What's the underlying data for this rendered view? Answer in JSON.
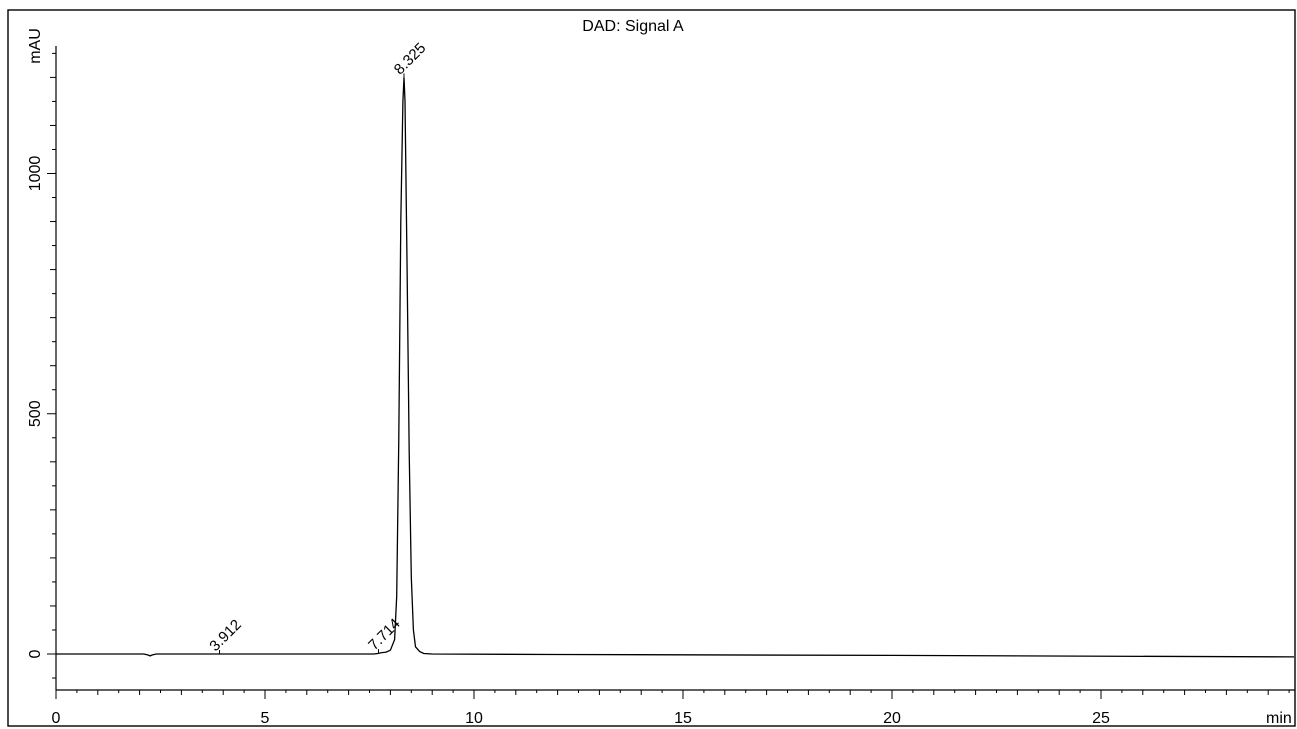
{
  "chart_data": {
    "type": "line",
    "title": "DAD: Signal A",
    "xlabel": "min",
    "ylabel": "mAU",
    "xlim": [
      0,
      30
    ],
    "ylim": [
      -75,
      1260
    ],
    "x_ticks": [
      0,
      5,
      10,
      15,
      20,
      25
    ],
    "y_ticks": [
      0,
      500,
      1000
    ],
    "grid": false,
    "series": [
      {
        "x": [
          0,
          2.1,
          2.2,
          2.25,
          2.3,
          2.4,
          3.9,
          7.6,
          7.7,
          7.75,
          7.8,
          7.9,
          8.0,
          8.1,
          8.15,
          8.2,
          8.25,
          8.3,
          8.325,
          8.35,
          8.4,
          8.45,
          8.5,
          8.55,
          8.6,
          8.7,
          8.8,
          9.0,
          12,
          20,
          30
        ],
        "y": [
          0,
          0,
          -2,
          -4,
          -2,
          0,
          0,
          0,
          1,
          2,
          3,
          4,
          8,
          30,
          120,
          450,
          900,
          1150,
          1200,
          1150,
          800,
          420,
          160,
          50,
          15,
          5,
          1,
          0,
          -1,
          -3,
          -6
        ]
      }
    ],
    "peaks": [
      {
        "rt": 3.912,
        "y": 0,
        "label": "3.912"
      },
      {
        "rt": 7.714,
        "y": 2,
        "label": "7.714"
      },
      {
        "rt": 8.325,
        "y": 1200,
        "label": "8.325"
      }
    ]
  }
}
